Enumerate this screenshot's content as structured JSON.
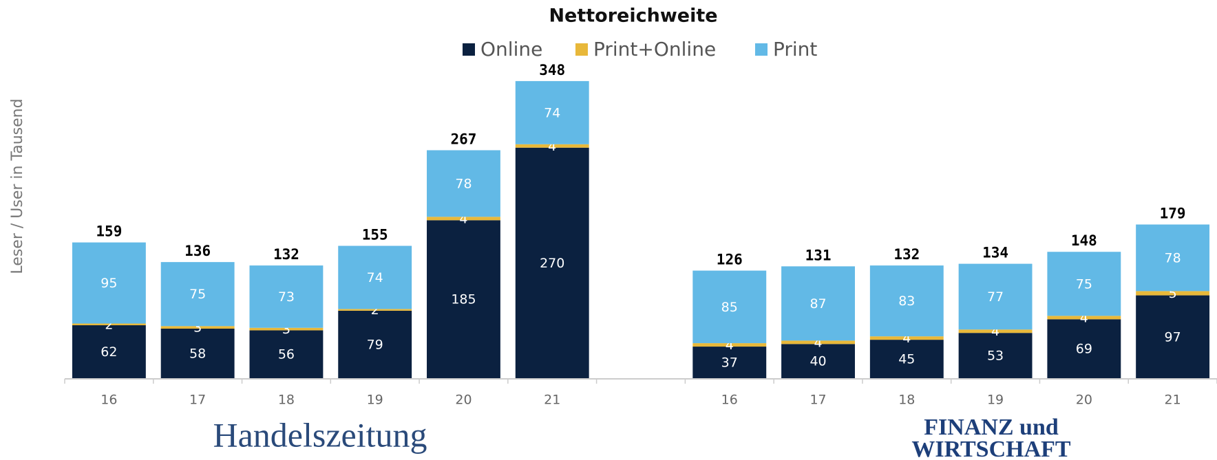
{
  "chart_data": {
    "type": "stacked_bar",
    "title": "Nettoreichweite",
    "y_label": "Leser / User in Tausend",
    "categories": [
      "16",
      "17",
      "18",
      "19",
      "20",
      "21",
      null,
      "16",
      "17",
      "18",
      "19",
      "20",
      "21"
    ],
    "series": [
      {
        "name": "Online",
        "color": "#0b2140",
        "values": [
          62,
          58,
          56,
          79,
          185,
          270,
          null,
          37,
          40,
          45,
          53,
          69,
          97
        ]
      },
      {
        "name": "Print+Online",
        "color": "#e8b83a",
        "values": [
          2,
          3,
          3,
          2,
          4,
          4,
          null,
          4,
          4,
          4,
          4,
          4,
          5
        ]
      },
      {
        "name": "Print",
        "color": "#62b9e6",
        "values": [
          95,
          75,
          73,
          74,
          78,
          74,
          null,
          85,
          87,
          83,
          77,
          75,
          78
        ]
      }
    ],
    "totals": [
      159,
      136,
      132,
      155,
      267,
      348,
      null,
      126,
      131,
      132,
      134,
      148,
      179
    ],
    "ylim": [
      0,
      360
    ],
    "legend": "top",
    "logos": [
      "Handelszeitung",
      "FINANZ und",
      "WIRTSCHAFT"
    ]
  }
}
